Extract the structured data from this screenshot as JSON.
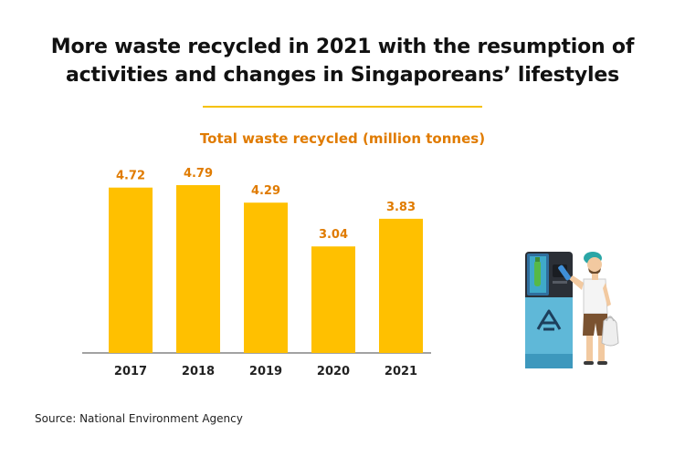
{
  "title": {
    "line1": "More waste recycled in 2021 with the resumption of",
    "line2": "activities and changes in Singaporeans’ lifestyles"
  },
  "source": "Source: National Environment Agency",
  "colors": {
    "bar": "#ffc000",
    "accent": "#e07b00",
    "divider": "#f5c100",
    "axis": "#444444"
  },
  "illustration": {
    "icons": [
      "recycling-machine-icon",
      "recycle-symbol-icon",
      "person-icon",
      "plastic-bottle-icon",
      "shopping-bag-icon"
    ]
  },
  "chart_data": {
    "type": "bar",
    "title": "Total waste recycled (million tonnes)",
    "categories": [
      "2017",
      "2018",
      "2019",
      "2020",
      "2021"
    ],
    "values": [
      4.72,
      4.79,
      4.29,
      3.04,
      3.83
    ],
    "value_labels": [
      "4.72",
      "4.79",
      "4.29",
      "3.04",
      "3.83"
    ],
    "ylim": [
      0,
      4.79
    ],
    "xlabel": "",
    "ylabel": "",
    "grid": false,
    "legend": "none"
  }
}
